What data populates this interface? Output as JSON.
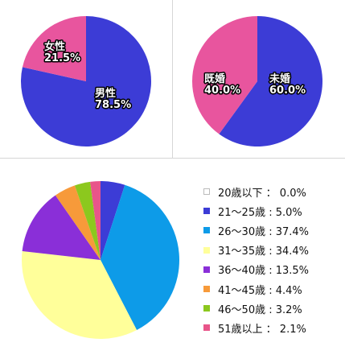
{
  "chart_data": [
    {
      "type": "pie",
      "categories": [
        "男性",
        "女性"
      ],
      "values": [
        78.5,
        21.5
      ],
      "labels": [
        "男性\n78.5%",
        "女性\n21.5%"
      ],
      "colors": [
        "#3c3cd6",
        "#e8559e"
      ]
    },
    {
      "type": "pie",
      "categories": [
        "未婚",
        "既婚"
      ],
      "values": [
        60.0,
        40.0
      ],
      "labels": [
        "未婚\n60.0%",
        "既婚\n40.0%"
      ],
      "colors": [
        "#3c3cd6",
        "#e8559e"
      ]
    },
    {
      "type": "pie",
      "categories": [
        "20歳以下",
        "21〜25歳",
        "26〜30歳",
        "31〜35歳",
        "36〜40歳",
        "41〜45歳",
        "46〜50歳",
        "51歳以上"
      ],
      "values": [
        0.0,
        5.0,
        37.4,
        34.4,
        13.5,
        4.4,
        3.2,
        2.1
      ],
      "colors": [
        "#ffffff",
        "#3c3cd6",
        "#0d9be8",
        "#ffff9a",
        "#8a2fd8",
        "#f79a3a",
        "#8cc81e",
        "#e8558a"
      ],
      "legend": [
        "20歳以下 ： 0.0%",
        "21～25歳 : 5.0%",
        "26～30歳 : 37.4%",
        "31～35歳 : 34.4%",
        "36～40歳 : 13.5%",
        "41～45歳 : 4.4%",
        "46～50歳 : 3.2%",
        "51歳以上 ： 2.1%"
      ]
    }
  ]
}
